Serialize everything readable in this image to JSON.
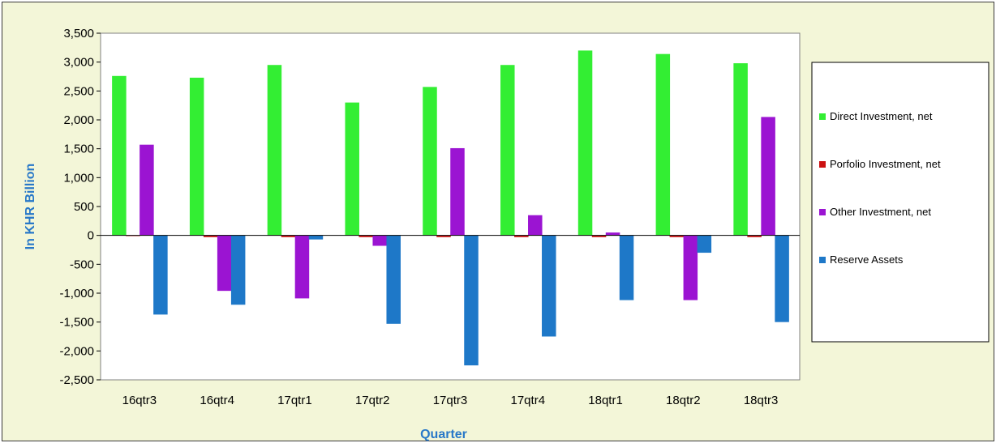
{
  "chart_data": {
    "type": "bar",
    "title": "",
    "xlabel": "Quarter",
    "ylabel": "In KHR Billion",
    "ylim": [
      -2500,
      3500
    ],
    "ytick_step": 500,
    "categories": [
      "16qtr3",
      "16qtr4",
      "17qtr1",
      "17qtr2",
      "17qtr3",
      "17qtr4",
      "18qtr1",
      "18qtr2",
      "18qtr3"
    ],
    "series": [
      {
        "name": "Direct Investment, net",
        "color": "#33ee33",
        "values": [
          2760,
          2730,
          2950,
          2300,
          2570,
          2950,
          3200,
          3140,
          2980
        ]
      },
      {
        "name": "Porfolio Investment, net",
        "color": "#cc1111",
        "values": [
          -5,
          -30,
          -30,
          -30,
          -30,
          -30,
          -30,
          -30,
          -30
        ]
      },
      {
        "name": "Other Investment, net",
        "color": "#9b14d2",
        "values": [
          1570,
          -960,
          -1090,
          -180,
          1510,
          350,
          50,
          -1120,
          2050
        ]
      },
      {
        "name": "Reserve Assets",
        "color": "#1e78c8",
        "values": [
          -1370,
          -1200,
          -70,
          -1530,
          -2250,
          -1750,
          -1120,
          -300,
          -1500
        ]
      }
    ],
    "grid": false,
    "legend_position": "right"
  }
}
